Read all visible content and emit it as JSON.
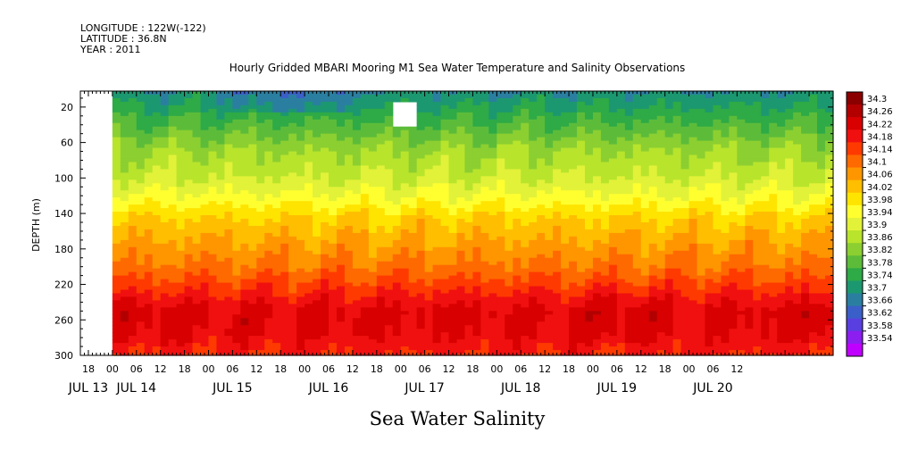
{
  "header": {
    "longitude": "LONGITUDE : 122W(-122)",
    "latitude": "LATITUDE : 36.8N",
    "year": "YEAR : 2011"
  },
  "footer_title": "Sea Water Salinity",
  "chart_data": {
    "type": "heatmap",
    "title": "Hourly Gridded MBARI Mooring M1 Sea Water Temperature and Salinity Observations",
    "ylabel": "DEPTH (m)",
    "xlabel": "",
    "x_range_hours": [
      -8,
      180
    ],
    "data_start_hours": 0,
    "ylim": [
      300,
      2
    ],
    "y_ticks": [
      20,
      60,
      100,
      140,
      180,
      220,
      260,
      300
    ],
    "x_hour_ticks": [
      "18",
      "00",
      "06",
      "12",
      "18",
      "00",
      "06",
      "12",
      "18",
      "00",
      "06",
      "12",
      "18",
      "00",
      "06",
      "12",
      "18",
      "00",
      "06",
      "12",
      "18",
      "00",
      "06",
      "12",
      "18",
      "00",
      "06",
      "12"
    ],
    "x_hour_tick_positions": [
      -6,
      0,
      6,
      12,
      18,
      24,
      30,
      36,
      42,
      48,
      54,
      60,
      66,
      72,
      78,
      84,
      90,
      96,
      102,
      108,
      114,
      120,
      126,
      132,
      138,
      144,
      150,
      156
    ],
    "x_date_labels": [
      "JUL 13",
      "JUL 14",
      "JUL 15",
      "JUL 16",
      "JUL 17",
      "JUL 18",
      "JUL 19",
      "JUL 20"
    ],
    "x_date_positions": [
      -6,
      6,
      30,
      54,
      78,
      102,
      126,
      150
    ],
    "colorbar": {
      "levels": [
        34.3,
        34.26,
        34.22,
        34.18,
        34.14,
        34.1,
        34.06,
        34.02,
        33.98,
        33.94,
        33.9,
        33.86,
        33.82,
        33.78,
        33.74,
        33.7,
        33.66,
        33.62,
        33.58,
        33.54
      ],
      "colors": [
        "#8a0000",
        "#b20000",
        "#d80000",
        "#f01010",
        "#ff3a00",
        "#ff6a00",
        "#ff9600",
        "#ffbe00",
        "#ffe400",
        "#ffff30",
        "#e2f238",
        "#b8e42c",
        "#8ccf30",
        "#5cbc3a",
        "#2eaa46",
        "#1c9870",
        "#2a7fa0",
        "#3b5fc8",
        "#5a3fe0",
        "#8c1ef0",
        "#c000ff"
      ],
      "unit": ""
    },
    "depth_profile": [
      {
        "depth": 2,
        "value": 33.7
      },
      {
        "depth": 20,
        "value": 33.74
      },
      {
        "depth": 45,
        "value": 33.8
      },
      {
        "depth": 70,
        "value": 33.86
      },
      {
        "depth": 100,
        "value": 33.9
      },
      {
        "depth": 125,
        "value": 33.96
      },
      {
        "depth": 145,
        "value": 34.02
      },
      {
        "depth": 175,
        "value": 34.07
      },
      {
        "depth": 200,
        "value": 34.11
      },
      {
        "depth": 225,
        "value": 34.17
      },
      {
        "depth": 250,
        "value": 34.23
      },
      {
        "depth": 275,
        "value": 34.22
      },
      {
        "depth": 300,
        "value": 34.18
      }
    ],
    "missing_block": {
      "t_start": 71,
      "t_end": 75,
      "depth_top": 14,
      "depth_bottom": 41
    }
  }
}
